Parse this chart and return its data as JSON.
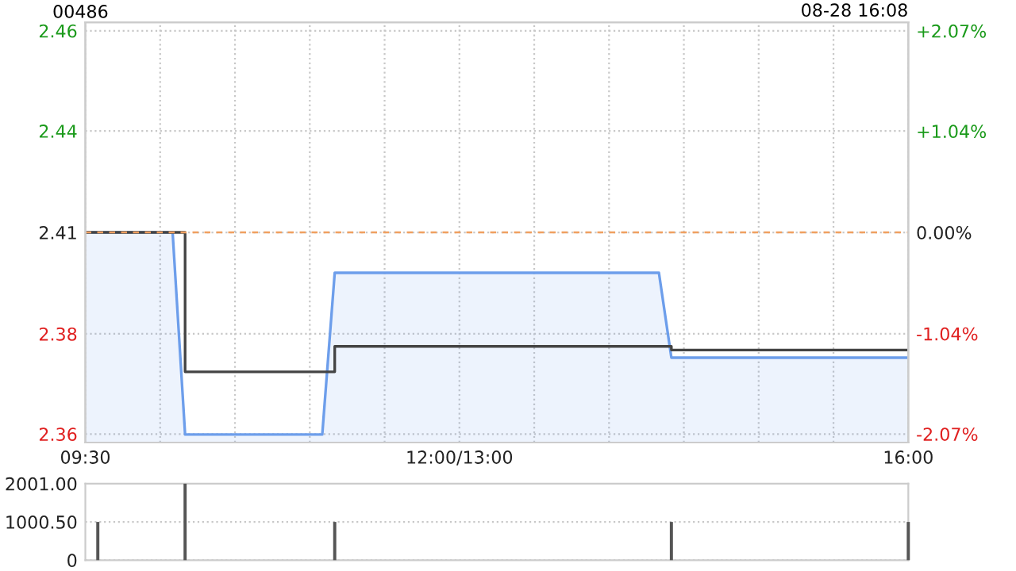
{
  "chart_data": [
    {
      "type": "line",
      "title": "00486",
      "annotations": [
        "08-28 16:08"
      ],
      "categories": [
        "09:30",
        null,
        null,
        null,
        null,
        null,
        null,
        null,
        null,
        null,
        null,
        null,
        null,
        null,
        null,
        null,
        null,
        null,
        null,
        null,
        null,
        null,
        null,
        null,
        null,
        null,
        null,
        null,
        null,
        null,
        "12:00/13:00",
        null,
        null,
        null,
        null,
        null,
        null,
        null,
        null,
        null,
        null,
        null,
        null,
        null,
        null,
        null,
        null,
        null,
        null,
        null,
        null,
        null,
        null,
        null,
        null,
        null,
        null,
        null,
        null,
        null,
        null,
        null,
        null,
        null,
        null,
        null,
        "16:00"
      ],
      "ylim": [
        2.358,
        2.462
      ],
      "yticks": [
        {
          "value": 2.4599,
          "label": "2.46"
        },
        {
          "value": 2.4351,
          "label": "2.44"
        },
        2.41,
        {
          "value": 2.3849,
          "label": "2.38"
        },
        {
          "value": 2.3601,
          "label": "2.36"
        }
      ],
      "y2lim": [
        -2.158,
        2.158
      ],
      "y2ticks": [
        {
          "value": 2.07,
          "label": "+2.07%"
        },
        {
          "value": 1.04,
          "label": "+1.04%"
        },
        {
          "value": 0,
          "label": "0.00%"
        },
        {
          "value": -1.04,
          "label": "-1.04%"
        },
        {
          "value": -2.07,
          "label": "-2.07%"
        }
      ],
      "series": [
        {
          "type": "area",
          "color": "#6d9eeb",
          "values": [
            2.41,
            2.41,
            2.41,
            2.41,
            2.41,
            2.41,
            2.41,
            2.41,
            2.36,
            2.36,
            2.36,
            2.36,
            2.36,
            2.36,
            2.36,
            2.36,
            2.36,
            2.36,
            2.36,
            2.36,
            2.4,
            2.4,
            2.4,
            2.4,
            2.4,
            2.4,
            2.4,
            2.4,
            2.4,
            2.4,
            2.4,
            2.4,
            2.4,
            2.4,
            2.4,
            2.4,
            2.4,
            2.4,
            2.4,
            2.4,
            2.4,
            2.4,
            2.4,
            2.4,
            2.4,
            2.4,
            2.4,
            2.379,
            2.379,
            2.379,
            2.379,
            2.379,
            2.379,
            2.379,
            2.379,
            2.379,
            2.379,
            2.379,
            2.379,
            2.379,
            2.379,
            2.379,
            2.379,
            2.379,
            2.379,
            2.379,
            2.379
          ]
        },
        {
          "type": "step",
          "color": "#444444",
          "values": [
            2.41,
            2.41,
            2.41,
            2.41,
            2.41,
            2.41,
            2.41,
            2.41,
            2.3755,
            2.3755,
            2.3755,
            2.3755,
            2.3755,
            2.3755,
            2.3755,
            2.3755,
            2.3755,
            2.3755,
            2.3755,
            2.3755,
            2.3818,
            2.3818,
            2.3818,
            2.3818,
            2.3818,
            2.3818,
            2.3818,
            2.3818,
            2.3818,
            2.3818,
            2.3818,
            2.3818,
            2.3818,
            2.3818,
            2.3818,
            2.3818,
            2.3818,
            2.3818,
            2.3818,
            2.3818,
            2.3818,
            2.3818,
            2.3818,
            2.3818,
            2.3818,
            2.3818,
            2.3818,
            2.3809,
            2.3809,
            2.3809,
            2.3809,
            2.3809,
            2.3809,
            2.3809,
            2.3809,
            2.3809,
            2.3809,
            2.3809,
            2.3809,
            2.3809,
            2.3809,
            2.3809,
            2.3809,
            2.3809,
            2.3809,
            2.3809,
            2.3809
          ]
        }
      ],
      "ref_lines": [
        {
          "axis": "y",
          "value": 2.41,
          "color": "#f0a060",
          "line_style": "dashed"
        }
      ],
      "grid": true,
      "legend": false
    },
    {
      "type": "bar",
      "categories": [
        null,
        null,
        null,
        null,
        null,
        null,
        null,
        null,
        null,
        null,
        null,
        null,
        null,
        null,
        null,
        null,
        null,
        null,
        null,
        null,
        null,
        null,
        null,
        null,
        null,
        null,
        null,
        null,
        null,
        null,
        null,
        null,
        null,
        null,
        null,
        null,
        null,
        null,
        null,
        null,
        null,
        null,
        null,
        null,
        null,
        null,
        null,
        null,
        null,
        null,
        null,
        null,
        null,
        null,
        null,
        null,
        null,
        null,
        null,
        null,
        null,
        null,
        null,
        null,
        null,
        null,
        null
      ],
      "values": [
        null,
        1000,
        null,
        null,
        null,
        null,
        null,
        null,
        2000,
        null,
        null,
        null,
        null,
        null,
        null,
        null,
        null,
        null,
        null,
        null,
        1000,
        null,
        null,
        null,
        null,
        null,
        null,
        null,
        null,
        null,
        null,
        null,
        null,
        null,
        null,
        null,
        null,
        null,
        null,
        null,
        null,
        null,
        null,
        null,
        null,
        null,
        null,
        1000,
        null,
        null,
        null,
        null,
        null,
        null,
        null,
        null,
        null,
        null,
        null,
        null,
        null,
        null,
        null,
        null,
        null,
        null,
        1000
      ],
      "color": "#555555",
      "ylim": [
        0,
        2001
      ],
      "yticks": [
        0,
        {
          "value": 1000.5,
          "label": "1000.50"
        },
        {
          "value": 2001,
          "label": "2001.00"
        }
      ],
      "tick_labels": "y",
      "grid": "y",
      "legend": false
    }
  ]
}
